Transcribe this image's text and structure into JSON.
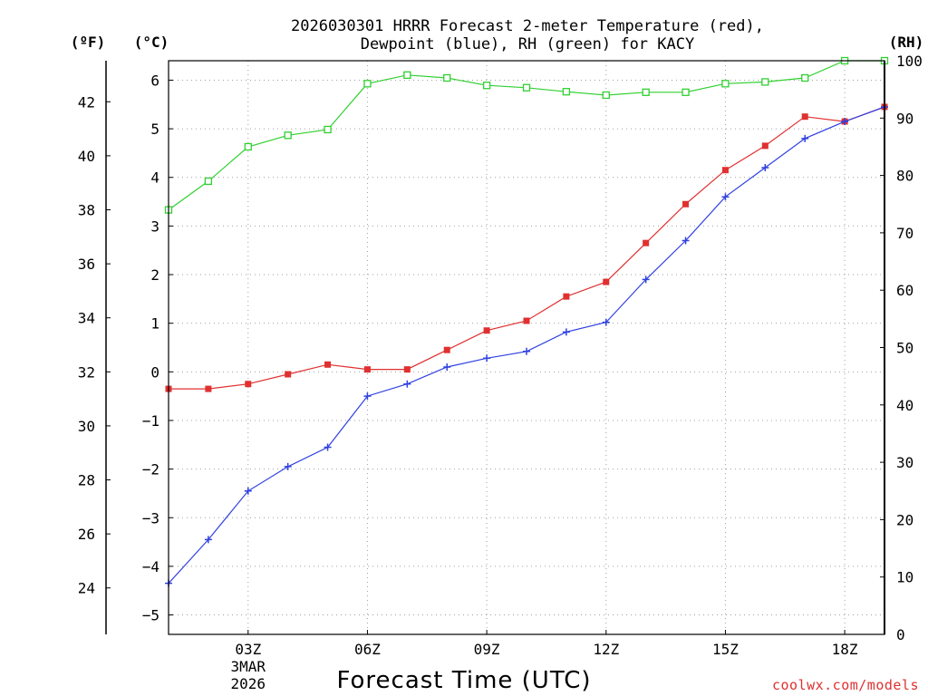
{
  "chart_data": {
    "type": "line",
    "title": "2026030301 HRRR Forecast 2-meter Temperature (red),",
    "subtitle": "Dewpoint (blue), RH (green) for KACY",
    "xlabel": "Forecast Time (UTC)",
    "credit": "coolwx.com/models",
    "x_hours": [
      1,
      2,
      3,
      4,
      5,
      6,
      7,
      8,
      9,
      10,
      11,
      12,
      13,
      14,
      15,
      16,
      17,
      18,
      19
    ],
    "x_range": [
      1,
      19
    ],
    "x_ticks": [
      {
        "hour": 3,
        "label": "03Z",
        "sub1": "3MAR",
        "sub2": "2026"
      },
      {
        "hour": 6,
        "label": "06Z"
      },
      {
        "hour": 9,
        "label": "09Z"
      },
      {
        "hour": 12,
        "label": "12Z"
      },
      {
        "hour": 15,
        "label": "15Z"
      },
      {
        "hour": 18,
        "label": "18Z"
      }
    ],
    "left_axis": {
      "unit_label": "(°C)",
      "range": [
        -5.4,
        6.4
      ],
      "ticks": [
        -5,
        -4,
        -3,
        -2,
        -1,
        0,
        1,
        2,
        3,
        4,
        5,
        6
      ]
    },
    "fahrenheit_axis": {
      "unit_label": "(ºF)",
      "ticks": [
        24,
        26,
        28,
        30,
        32,
        34,
        36,
        38,
        40,
        42
      ]
    },
    "right_axis": {
      "unit_label": "(RH)",
      "range": [
        0,
        100
      ],
      "ticks": [
        0,
        10,
        20,
        30,
        40,
        50,
        60,
        70,
        80,
        90,
        100
      ]
    },
    "series": [
      {
        "name": "Temperature",
        "axis": "left",
        "color": "#e03030",
        "marker": "filled-square",
        "values": [
          -0.35,
          -0.35,
          -0.25,
          -0.05,
          0.15,
          0.05,
          0.05,
          0.45,
          0.85,
          1.05,
          1.55,
          1.85,
          2.65,
          3.45,
          4.15,
          4.65,
          5.25,
          5.15,
          5.45
        ]
      },
      {
        "name": "Dewpoint",
        "axis": "left",
        "color": "#3040e0",
        "marker": "plus",
        "values": [
          -4.35,
          -3.45,
          -2.45,
          -1.95,
          -1.55,
          -0.5,
          -0.25,
          0.1,
          0.28,
          0.42,
          0.82,
          1.02,
          1.9,
          2.7,
          3.6,
          4.2,
          4.8,
          5.15,
          5.45
        ]
      },
      {
        "name": "RH",
        "axis": "right",
        "color": "#30d030",
        "marker": "open-square",
        "values": [
          74,
          79,
          85,
          87,
          88,
          96,
          97.5,
          97,
          95.7,
          95.3,
          94.6,
          94,
          94.5,
          94.5,
          96,
          96.3,
          97,
          100,
          100
        ]
      }
    ]
  }
}
